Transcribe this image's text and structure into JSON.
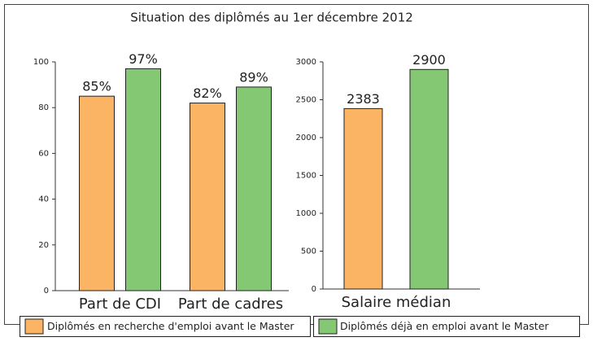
{
  "title": "Situation des diplômés au 1er décembre 2012",
  "chart_data": [
    {
      "type": "bar",
      "categories": [
        "Part de CDI",
        "Part de cadres"
      ],
      "series": [
        {
          "name": "Diplômés en recherche d'emploi avant le Master",
          "color": "#fbb463",
          "values": [
            85,
            82
          ],
          "value_labels": [
            "85%",
            "82%"
          ]
        },
        {
          "name": "Diplômés déjà en emploi avant le Master",
          "color": "#84c874",
          "values": [
            97,
            89
          ],
          "value_labels": [
            "97%",
            "89%"
          ]
        }
      ],
      "ylim": [
        0,
        100
      ],
      "yticks": [
        0,
        20,
        40,
        60,
        80,
        100
      ],
      "grid": false
    },
    {
      "type": "bar",
      "categories": [
        "Salaire médian"
      ],
      "series": [
        {
          "name": "Diplômés en recherche d'emploi avant le Master",
          "color": "#fbb463",
          "values": [
            2383
          ]
        },
        {
          "name": "Diplômés déjà en emploi avant le Master",
          "color": "#84c874",
          "values": [
            2900
          ]
        }
      ],
      "ylim": [
        0,
        3000
      ],
      "yticks": [
        0,
        500,
        1000,
        1500,
        2000,
        2500,
        3000
      ],
      "grid": false
    }
  ]
}
